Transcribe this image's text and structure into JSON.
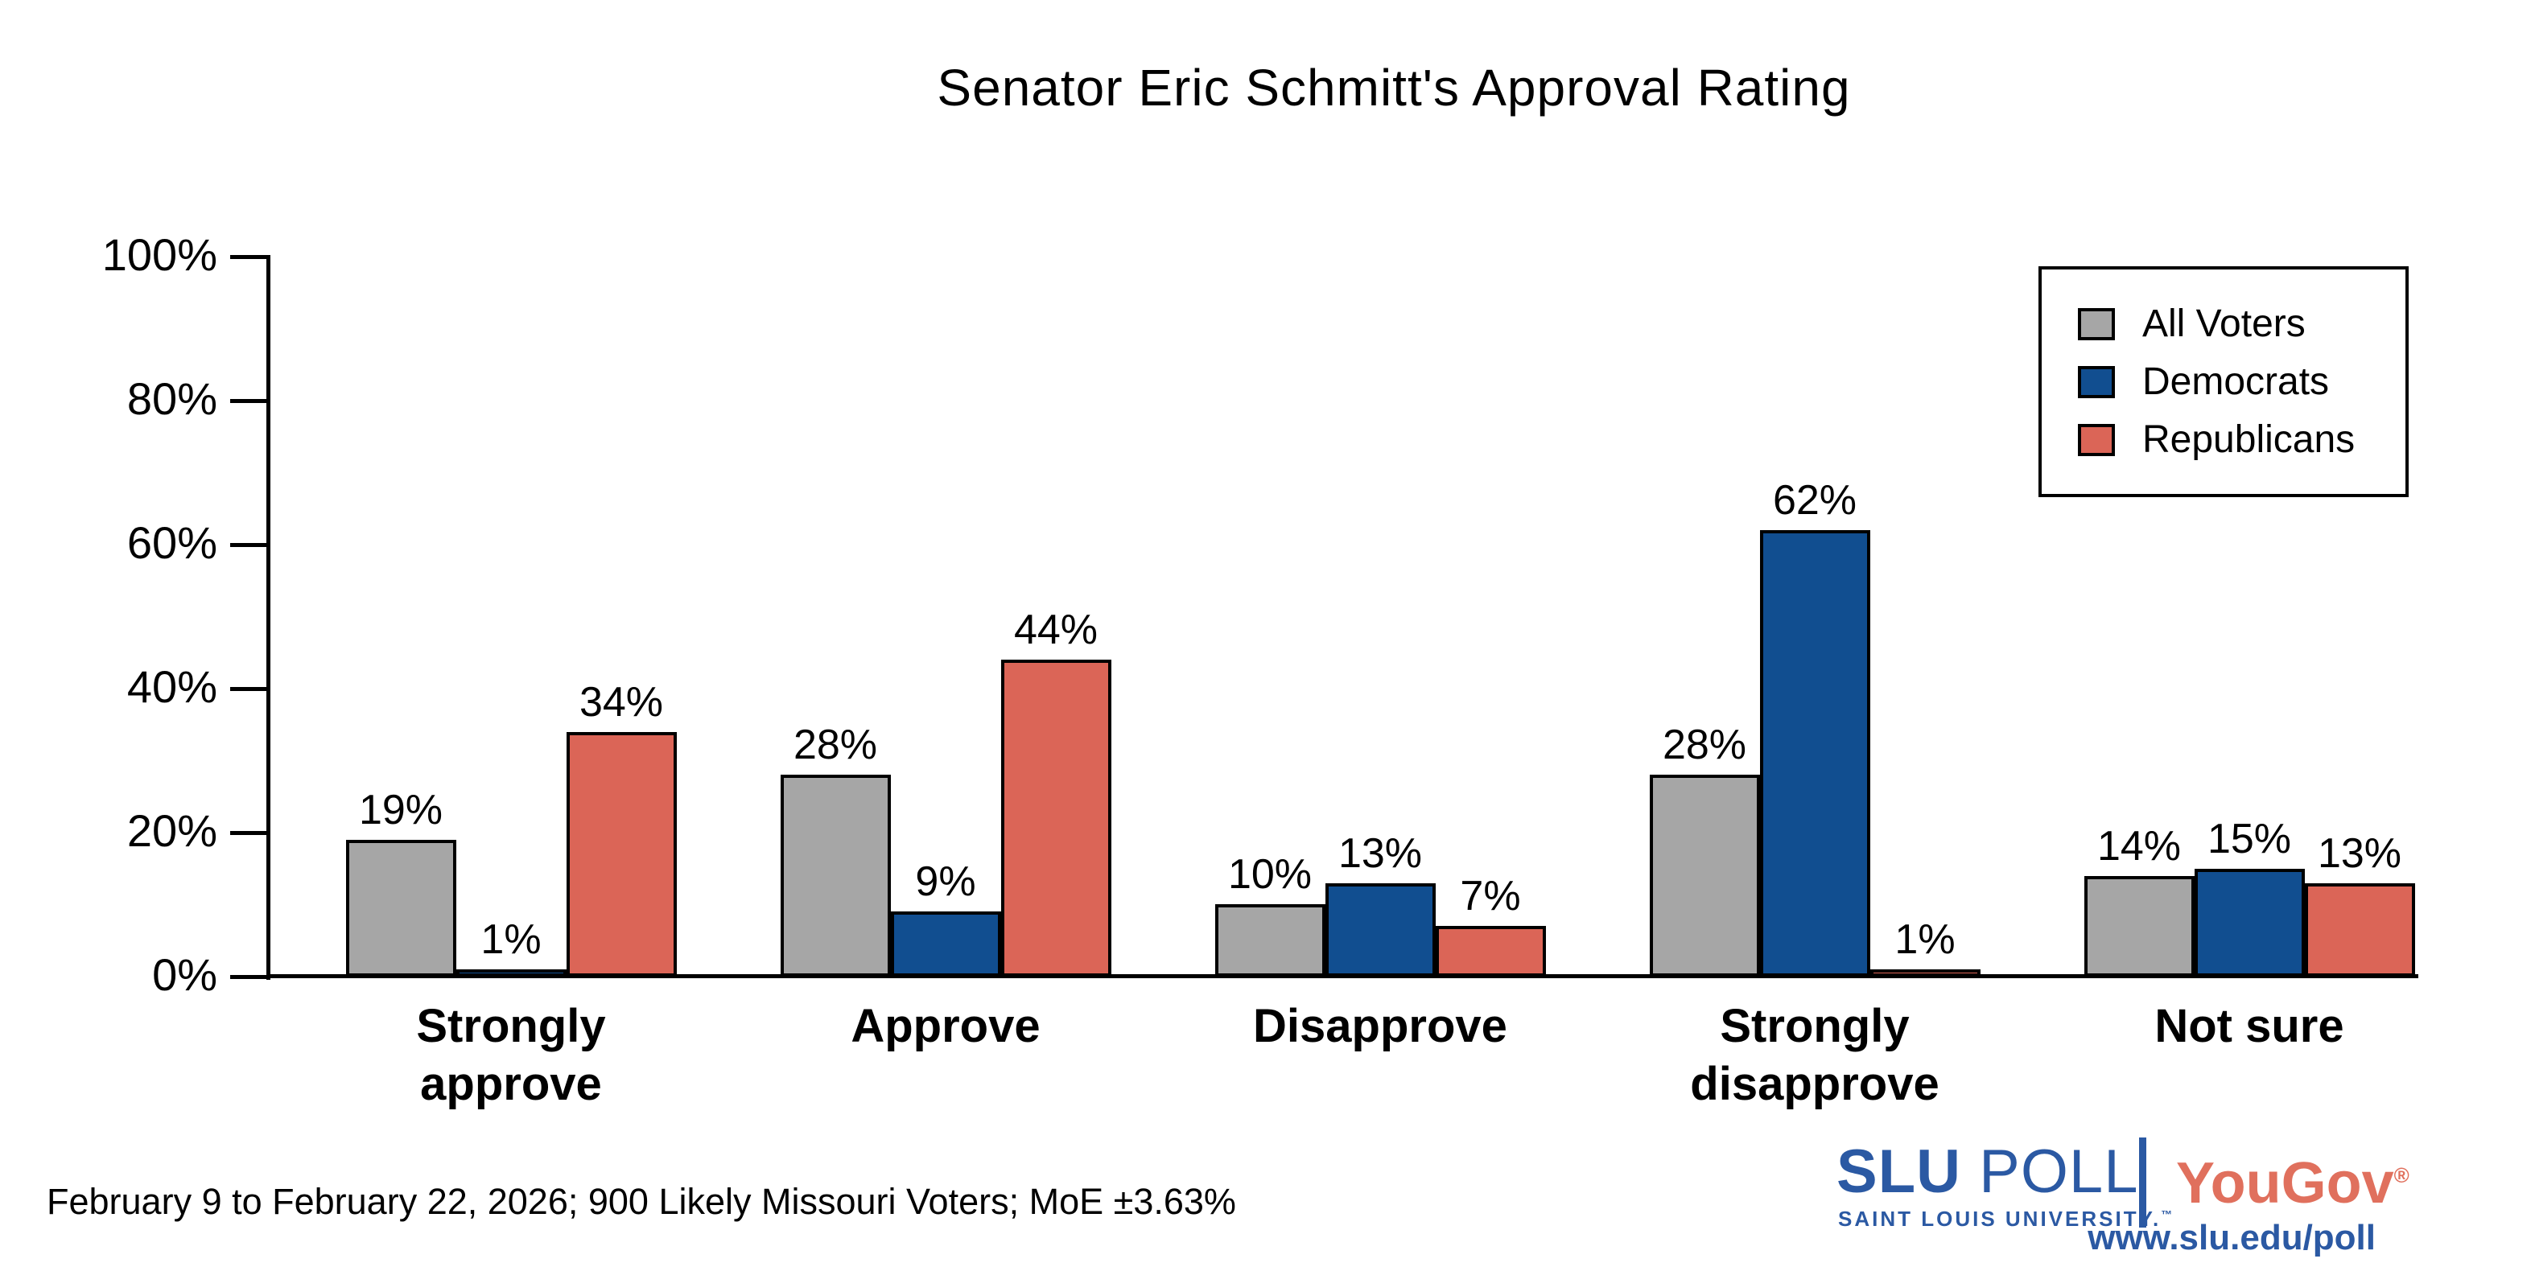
{
  "title": "Senator Eric Schmitt's Approval Rating",
  "footer": "February 9 to February 22, 2026; 900 Likely Missouri Voters; MoE ±3.63%",
  "branding": {
    "slu": "SLU",
    "poll": "POLL",
    "slu_subtitle": "SAINT LOUIS UNIVERSITY.",
    "trademark": "™",
    "yougov": "YouGov",
    "registered": "®",
    "url": "www.slu.edu/poll",
    "slu_blue": "#2B59A3",
    "yougov_red": "#E0705D"
  },
  "chart_data": {
    "type": "bar",
    "title": "Senator Eric Schmitt's Approval Rating",
    "categories": [
      "Strongly approve",
      "Approve",
      "Disapprove",
      "Strongly disapprove",
      "Not sure"
    ],
    "series": [
      {
        "name": "All Voters",
        "color": "#A6A6A6",
        "values": [
          19,
          28,
          10,
          28,
          14
        ]
      },
      {
        "name": "Democrats",
        "color": "#114E90",
        "values": [
          1,
          9,
          13,
          62,
          15
        ]
      },
      {
        "name": "Republicans",
        "color": "#DB6557",
        "values": [
          34,
          44,
          7,
          1,
          13
        ]
      }
    ],
    "value_suffix": "%",
    "ylabel": "",
    "xlabel": "",
    "ylim": [
      0,
      100
    ],
    "ytick_step": 20,
    "yticks": [
      "0%",
      "20%",
      "40%",
      "60%",
      "80%",
      "100%"
    ],
    "grid": false,
    "legend_position": "top-right",
    "bar_outline": "#000000"
  }
}
